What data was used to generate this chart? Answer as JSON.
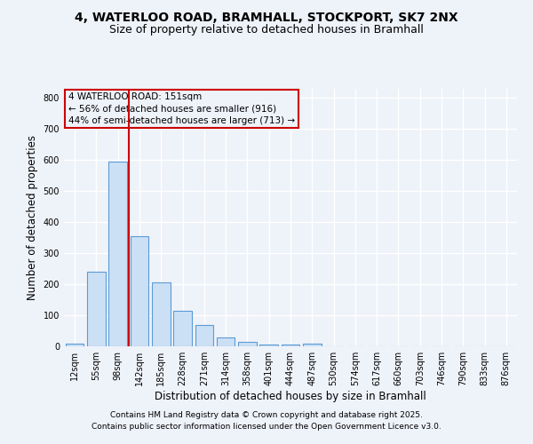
{
  "title1": "4, WATERLOO ROAD, BRAMHALL, STOCKPORT, SK7 2NX",
  "title2": "Size of property relative to detached houses in Bramhall",
  "xlabel": "Distribution of detached houses by size in Bramhall",
  "ylabel": "Number of detached properties",
  "categories": [
    "12sqm",
    "55sqm",
    "98sqm",
    "142sqm",
    "185sqm",
    "228sqm",
    "271sqm",
    "314sqm",
    "358sqm",
    "401sqm",
    "444sqm",
    "487sqm",
    "530sqm",
    "574sqm",
    "617sqm",
    "660sqm",
    "703sqm",
    "746sqm",
    "790sqm",
    "833sqm",
    "876sqm"
  ],
  "values": [
    8,
    240,
    595,
    355,
    205,
    115,
    70,
    28,
    14,
    5,
    6,
    8,
    0,
    0,
    0,
    0,
    0,
    0,
    0,
    0,
    0
  ],
  "bar_color": "#cce0f5",
  "bar_edge_color": "#5b9bd5",
  "vline_color": "#cc0000",
  "annotation_lines": [
    "4 WATERLOO ROAD: 151sqm",
    "← 56% of detached houses are smaller (916)",
    "44% of semi-detached houses are larger (713) →"
  ],
  "annotation_box_color": "#cc0000",
  "background_color": "#eef2f9",
  "grid_color": "#ffffff",
  "ylim": [
    0,
    830
  ],
  "yticks": [
    0,
    100,
    200,
    300,
    400,
    500,
    600,
    700,
    800
  ],
  "footer_line1": "Contains HM Land Registry data © Crown copyright and database right 2025.",
  "footer_line2": "Contains public sector information licensed under the Open Government Licence v3.0.",
  "title_fontsize": 10,
  "subtitle_fontsize": 9,
  "tick_fontsize": 7,
  "ylabel_fontsize": 8.5,
  "xlabel_fontsize": 8.5,
  "footer_fontsize": 6.5
}
